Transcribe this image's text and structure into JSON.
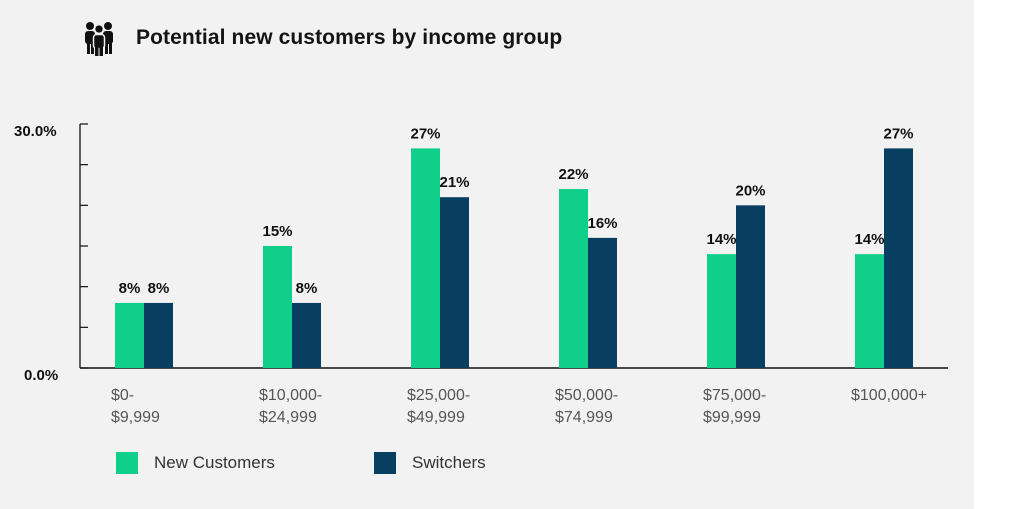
{
  "title": "Potential new customers by income group",
  "icon": "people-group-icon",
  "colors": {
    "new": "#0fcf8a",
    "switch": "#083f60",
    "axis": "#111111",
    "label": "#555555"
  },
  "chart_data": {
    "type": "bar",
    "title": "Potential new customers by income group",
    "categories": [
      [
        "$0-",
        "$9,999"
      ],
      [
        "$10,000-",
        "$24,999"
      ],
      [
        "$25,000-",
        "$49,999"
      ],
      [
        "$50,000-",
        "$74,999"
      ],
      [
        "$75,000-",
        "$99,999"
      ],
      [
        "$100,000+"
      ]
    ],
    "series": [
      {
        "name": "New Customers",
        "values": [
          8,
          15,
          27,
          22,
          14,
          14
        ],
        "labels": [
          "8%",
          "15%",
          "27%",
          "22%",
          "14%",
          "14%"
        ]
      },
      {
        "name": "Switchers",
        "values": [
          8,
          8,
          21,
          16,
          20,
          27
        ],
        "labels": [
          "8%",
          "8%",
          "21%",
          "16%",
          "20%",
          "27%"
        ]
      }
    ],
    "yticks": [
      "0.0%",
      "30.0%"
    ],
    "ylim": [
      0,
      30
    ],
    "grid": false,
    "legend": "bottom-left"
  }
}
